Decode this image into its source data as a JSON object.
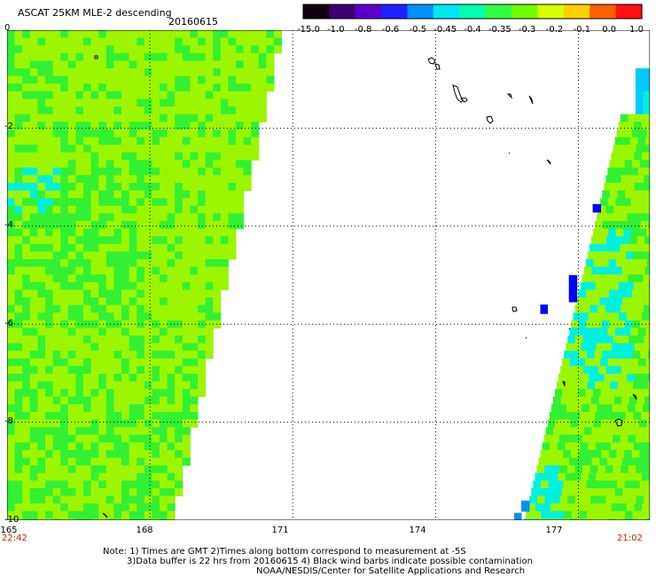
{
  "header": {
    "title": "ASCAT 25KM MLE-2 descending",
    "date": "20160615"
  },
  "colorbar": {
    "labels": [
      "-15.0",
      "-1.0",
      "-0.8",
      "-0.6",
      "-0.5",
      "-0.45",
      "-0.4",
      "-0.35",
      "-0.3",
      "-0.2",
      "-0.1",
      "0.0",
      "1.0"
    ],
    "colors": [
      "#100010",
      "#3a0070",
      "#5a00c8",
      "#2020ff",
      "#0090ff",
      "#00e8f0",
      "#00ffb0",
      "#30ff40",
      "#70ff00",
      "#d8ff00",
      "#ffd000",
      "#ff6000",
      "#ff1010"
    ]
  },
  "map": {
    "lat_labels": [
      "0",
      "-2",
      "-4",
      "-6",
      "-8",
      "-10"
    ],
    "lon_labels": [
      "165",
      "168",
      "171",
      "174",
      "177"
    ],
    "lat_range": [
      -10,
      0
    ],
    "lon_range": [
      165,
      178.5
    ],
    "grid_style": "dotted",
    "swath_colors": {
      "dominant": "#9cf500",
      "secondary": "#33f033",
      "cyan": "#00f0e0",
      "blue": "#0000ff"
    }
  },
  "times": {
    "left": "22:42",
    "right": "21:02"
  },
  "notes": {
    "line1": "Note: 1) Times are GMT 2)Times along bottom correspond to measurement at -5S",
    "line2": "3)Data buffer is 22 hrs from 20160615 4) Black wind barbs indicate possible contamination",
    "line3": "NOAA/NESDIS/Center for Satellite Applications and Research"
  }
}
